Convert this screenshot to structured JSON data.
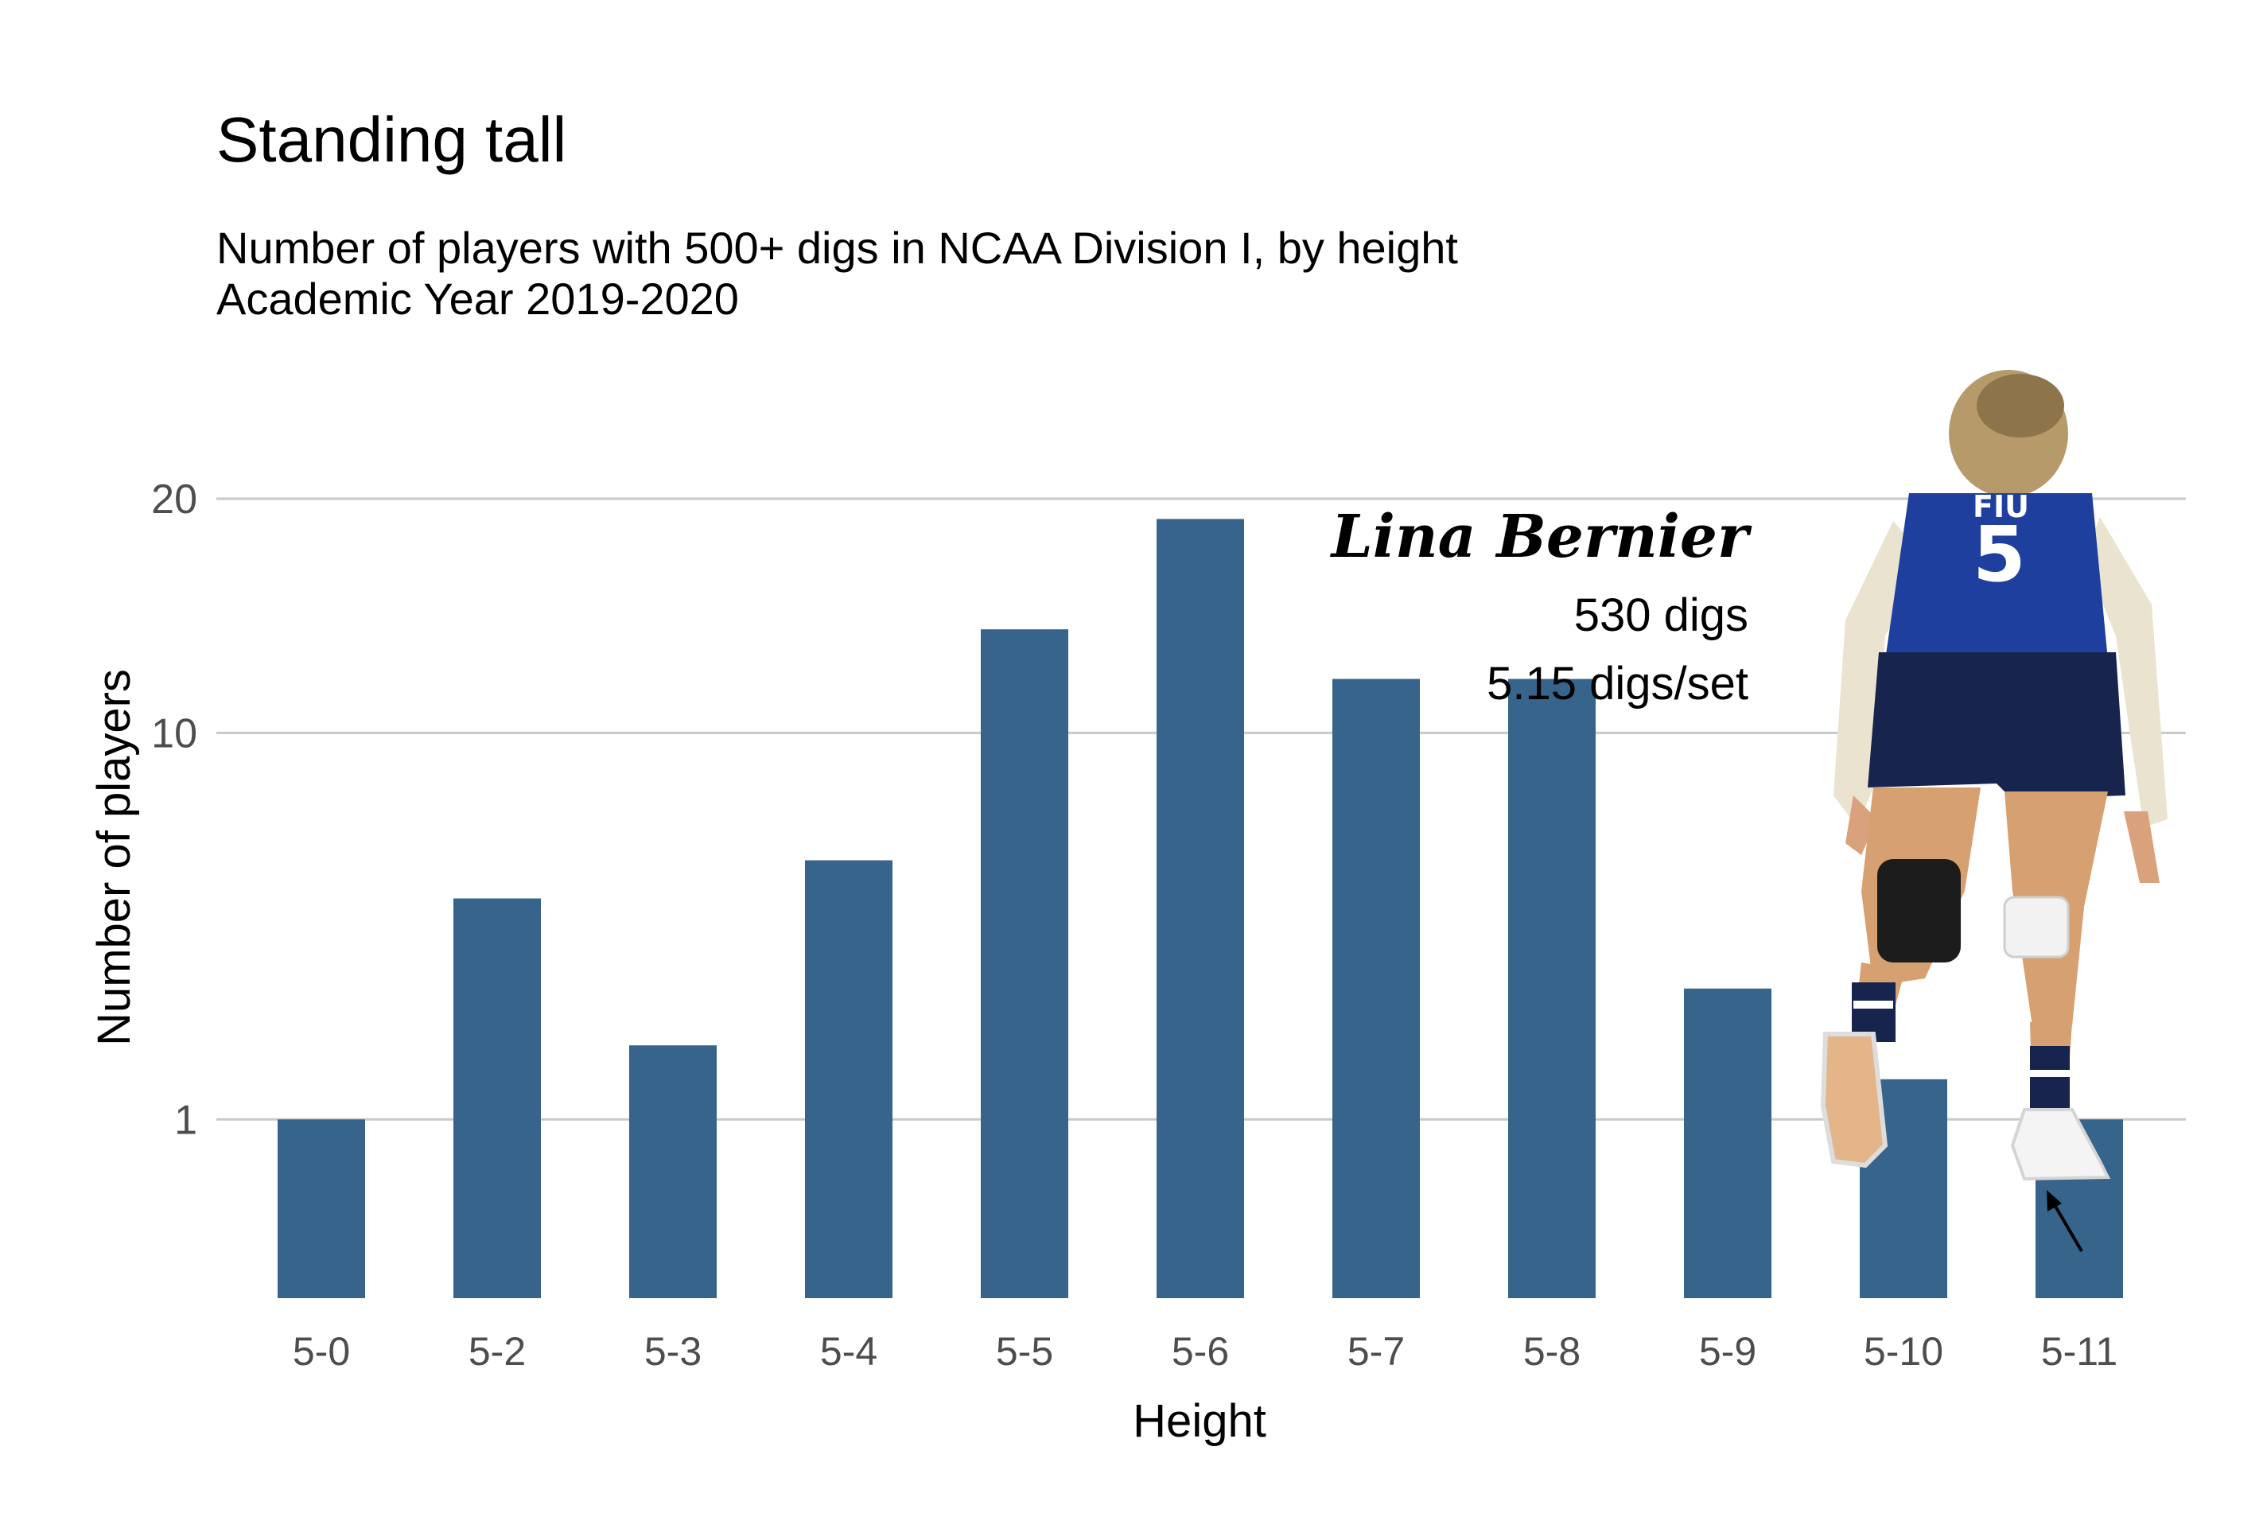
{
  "title": "Standing tall",
  "subtitle_line1": "Number of players with 500+ digs in NCAA Division I, by height",
  "subtitle_line2": "Academic Year 2019-2020",
  "annotation": {
    "name": "Lina Bernier",
    "digs": "530 digs",
    "digs_per_set": "5.15 digs/set",
    "jersey_text": "FIU",
    "jersey_number": "5",
    "points_to": "5-11"
  },
  "colors": {
    "bar": "#36648b",
    "grid": "#c9c9c9",
    "axis_text": "#4d4d4d",
    "jersey": "#1f3f9e"
  },
  "chart_data": {
    "type": "bar",
    "title": "Standing tall",
    "subtitle": "Number of players with 500+ digs in NCAA Division I, by height / Academic Year 2019-2020",
    "xlabel": "Height",
    "ylabel": "Number of players",
    "y_scale": "sqrt",
    "categories": [
      "5-0",
      "5-2",
      "5-3",
      "5-4",
      "5-5",
      "5-6",
      "5-7",
      "5-8",
      "5-9",
      "5-10",
      "5-11"
    ],
    "values": [
      1,
      5,
      2,
      6,
      14,
      19,
      12,
      12,
      3,
      1.5,
      1
    ],
    "y_ticks": [
      1,
      10,
      20
    ],
    "y_tick_labels": [
      "1",
      "10",
      "20"
    ],
    "ylim": [
      0,
      20
    ],
    "grid": true,
    "legend": "none"
  }
}
